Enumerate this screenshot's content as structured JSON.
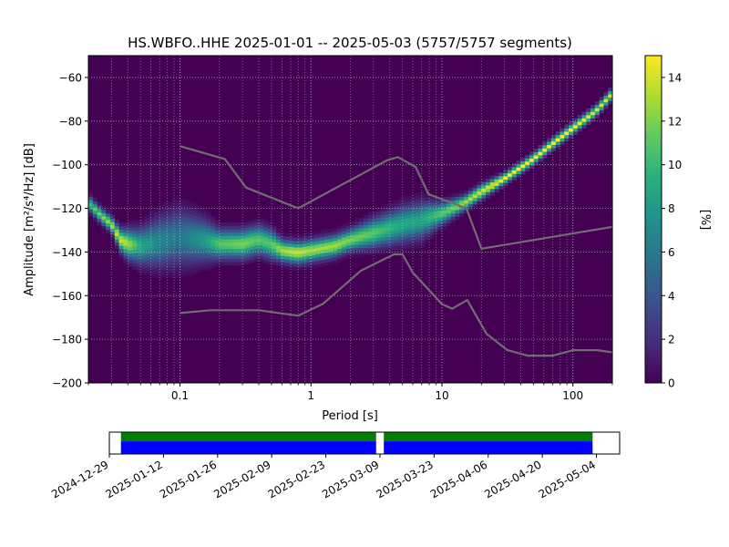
{
  "chart_data": [
    {
      "type": "heatmap",
      "title": "HS.WBFO..HHE   2025-01-01 -- 2025-05-03  (5757/5757 segments)",
      "xlabel": "Period [s]",
      "ylabel_prefix": "Amplitude [",
      "ylabel_math": "m",
      "ylabel_suffix": "[dB]",
      "ylabel_display": "Amplitude [m²/s⁴/Hz] [dB]",
      "x_scale": "log",
      "xlim": [
        0.02,
        200
      ],
      "ylim": [
        -200,
        -50
      ],
      "x_ticks": [
        {
          "value": 0.1,
          "label": "0.1"
        },
        {
          "value": 1,
          "label": "1"
        },
        {
          "value": 10,
          "label": "10"
        },
        {
          "value": 100,
          "label": "100"
        }
      ],
      "y_ticks": [
        {
          "value": -60,
          "label": "−60"
        },
        {
          "value": -80,
          "label": "−80"
        },
        {
          "value": -100,
          "label": "−100"
        },
        {
          "value": -120,
          "label": "−120"
        },
        {
          "value": -140,
          "label": "−140"
        },
        {
          "value": -160,
          "label": "−160"
        },
        {
          "value": -180,
          "label": "−180"
        },
        {
          "value": -200,
          "label": "−200"
        }
      ],
      "grid": true,
      "colormap": "viridis",
      "colorbar": {
        "label": "[%]",
        "range": [
          0,
          15
        ],
        "ticks": [
          {
            "value": 0,
            "label": "0"
          },
          {
            "value": 2,
            "label": "2"
          },
          {
            "value": 4,
            "label": "4"
          },
          {
            "value": 6,
            "label": "6"
          },
          {
            "value": 8,
            "label": "8"
          },
          {
            "value": 10,
            "label": "10"
          },
          {
            "value": 12,
            "label": "12"
          },
          {
            "value": 14,
            "label": "14"
          }
        ]
      },
      "psd_mode_curve": {
        "period": [
          0.02,
          0.025,
          0.03,
          0.035,
          0.04,
          0.05,
          0.07,
          0.1,
          0.15,
          0.2,
          0.3,
          0.4,
          0.5,
          0.6,
          0.8,
          1,
          1.5,
          2,
          3,
          5,
          7,
          10,
          15,
          20,
          30,
          50,
          70,
          100,
          150,
          200
        ],
        "amplitude": [
          -118,
          -124,
          -128,
          -135,
          -137,
          -138,
          -136,
          -134,
          -135,
          -137,
          -137,
          -135,
          -137,
          -140,
          -141,
          -140,
          -138,
          -135,
          -132,
          -128,
          -126,
          -123,
          -118,
          -113,
          -107,
          -98,
          -91,
          -84,
          -76,
          -68
        ],
        "spread_db": [
          2,
          2,
          2,
          3,
          4,
          5,
          7,
          8,
          6,
          4,
          4,
          4,
          4,
          3,
          3,
          3,
          3,
          3,
          4,
          5,
          5,
          3,
          2,
          2,
          1.5,
          1.5,
          1.5,
          1.5,
          1.5,
          1.5
        ],
        "peak_percent": [
          10,
          12,
          13,
          14,
          13,
          9,
          7,
          6,
          8,
          11,
          12,
          11,
          11,
          13,
          14,
          13,
          13,
          12,
          11,
          9,
          9,
          11,
          13,
          14,
          15,
          15,
          15,
          15,
          14,
          14
        ]
      },
      "noise_model_high": {
        "period": [
          0.1,
          0.22,
          0.32,
          0.8,
          3.8,
          4.6,
          6.3,
          7.9,
          15.4,
          20,
          354.8
        ],
        "amplitude": [
          -91.5,
          -97.4,
          -110.5,
          -120,
          -98,
          -96.5,
          -101,
          -113.5,
          -120,
          -138.5,
          -126
        ]
      },
      "noise_model_low": {
        "period": [
          0.1,
          0.17,
          0.4,
          0.8,
          1.24,
          2.4,
          4.3,
          5,
          6,
          10,
          12,
          15.6,
          21.9,
          31.6,
          45,
          70,
          101,
          154,
          200
        ],
        "amplitude": [
          -168,
          -166.7,
          -166.7,
          -169.2,
          -163.7,
          -148.6,
          -141.1,
          -141.1,
          -149.5,
          -163.9,
          -166,
          -162,
          -177.5,
          -185,
          -187.5,
          -187.5,
          -185,
          -185,
          -186
        ]
      }
    },
    {
      "type": "timeline",
      "date_ticks": [
        "2024-12-29",
        "2025-01-12",
        "2025-01-26",
        "2025-02-09",
        "2025-02-23",
        "2025-03-09",
        "2025-03-23",
        "2025-04-06",
        "2025-04-20",
        "2025-05-04"
      ],
      "range": [
        "2024-12-29",
        "2025-05-10"
      ],
      "data_segments": [
        {
          "start": "2025-01-01",
          "end": "2025-03-08"
        },
        {
          "start": "2025-03-10",
          "end": "2025-05-03"
        }
      ],
      "colors": {
        "used": "#008000",
        "available": "#0000ff"
      }
    }
  ]
}
